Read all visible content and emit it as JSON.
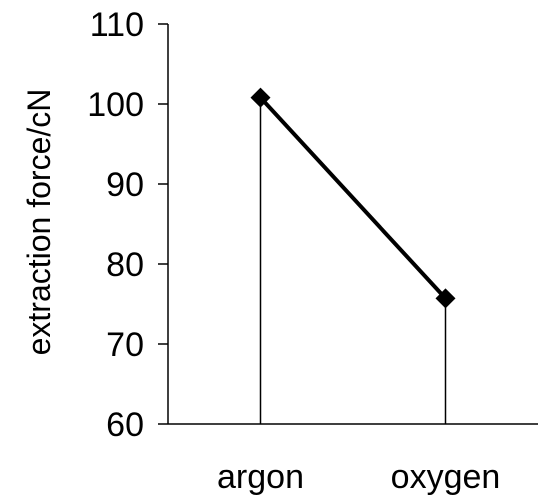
{
  "chart_data": {
    "type": "line",
    "title": "",
    "xlabel": "",
    "ylabel": "extraction force/cN",
    "categories": [
      "argon",
      "oxygen"
    ],
    "series": [
      {
        "values": [
          100.8,
          75.7
        ],
        "marker": "diamond",
        "color": "#000000"
      }
    ],
    "drop_lines": true,
    "ylim": [
      60,
      110
    ],
    "yticks": [
      "60",
      "70",
      "80",
      "90",
      "100",
      "110"
    ],
    "grid": false,
    "legend": "none"
  }
}
